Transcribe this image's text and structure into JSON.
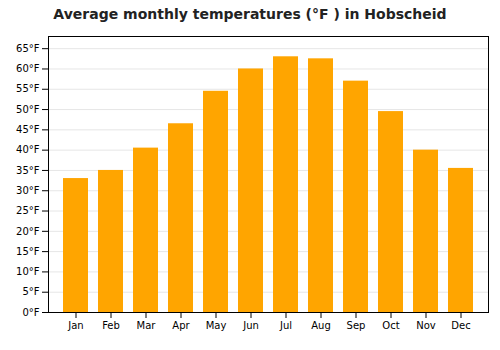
{
  "chart_data": {
    "type": "bar",
    "title": "Average monthly temperatures (°F ) in Hobscheid",
    "categories": [
      "Jan",
      "Feb",
      "Mar",
      "Apr",
      "May",
      "Jun",
      "Jul",
      "Aug",
      "Sep",
      "Oct",
      "Nov",
      "Dec"
    ],
    "values": [
      33,
      35,
      40.5,
      46.5,
      54.5,
      60,
      63,
      62.5,
      57,
      49.5,
      40,
      35.5
    ],
    "color": "#FFA500",
    "ylim": [
      0,
      68
    ],
    "yticks": [
      {
        "value": 0,
        "label": "0°F"
      },
      {
        "value": 5,
        "label": "5°F"
      },
      {
        "value": 10,
        "label": "10°F"
      },
      {
        "value": 15,
        "label": "15°F"
      },
      {
        "value": 20,
        "label": "20°F"
      },
      {
        "value": 25,
        "label": "25°F"
      },
      {
        "value": 30,
        "label": "30°F"
      },
      {
        "value": 35,
        "label": "35°F"
      },
      {
        "value": 40,
        "label": "40°F"
      },
      {
        "value": 45,
        "label": "45°F"
      },
      {
        "value": 50,
        "label": "50°F"
      },
      {
        "value": 55,
        "label": "55°F"
      },
      {
        "value": 60,
        "label": "60°F"
      },
      {
        "value": 65,
        "label": "65°F"
      }
    ],
    "grid": true
  }
}
